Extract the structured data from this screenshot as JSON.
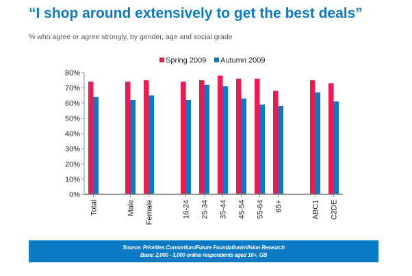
{
  "header": {
    "title": "“I shop around extensively to get the best deals”",
    "subtitle": "% who agree or agree strongly, by gender, age and social grade"
  },
  "footer": {
    "source": "Source: Priorities Consortium/Future Foundation/nVision Research",
    "base": "Base: 2,000 - 3,000 online respondents aged 16+, GB"
  },
  "chart_data": {
    "type": "bar",
    "categories": [
      "Total",
      "",
      "Male",
      "Female",
      "",
      "16-24",
      "25-34",
      "35-44",
      "45-54",
      "55-64",
      "65+",
      "",
      "ABC1",
      "C2DE"
    ],
    "series": [
      {
        "name": "Spring 2009",
        "color": "#ec1a52",
        "values": [
          74,
          null,
          74,
          75,
          null,
          74,
          75,
          78,
          76,
          76,
          68,
          null,
          75,
          73
        ]
      },
      {
        "name": "Autumn 2009",
        "color": "#0a7ac4",
        "values": [
          64,
          null,
          62,
          65,
          null,
          62,
          72,
          71,
          63,
          59,
          58,
          null,
          67,
          61
        ]
      }
    ],
    "yticks": [
      "0%",
      "10%",
      "20%",
      "30%",
      "40%",
      "50%",
      "60%",
      "70%",
      "80%"
    ],
    "ylim": [
      0,
      80
    ],
    "legend": "top-center",
    "grid": false
  }
}
